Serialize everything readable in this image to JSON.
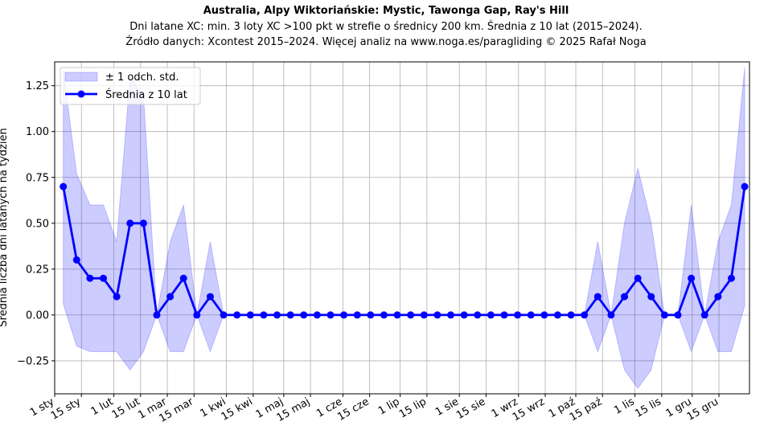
{
  "chart_data": {
    "type": "line",
    "title": "Australia, Alpy Wiktoriańskie: Mystic, Tawonga Gap, Ray's Hill",
    "subtitle": "Dni latane XC: min. 3 loty XC >100 pkt w strefie o średnicy 200 km. Średnia z 10 lat (2015–2024).",
    "source": "Źródło danych: Xcontest 2015–2024. Więcej analiz na www.noga.es/paragliding © 2025 Rafał Noga",
    "y_label": "Średnia liczba dni latanych na tydzień",
    "x": [
      4.5,
      11.5,
      18.5,
      25.5,
      32.5,
      39.5,
      46.5,
      53.5,
      60.5,
      67.5,
      74.5,
      81.5,
      88.5,
      95.5,
      102.5,
      109.5,
      116.5,
      123.5,
      130.5,
      137.5,
      144.5,
      151.5,
      158.5,
      165.5,
      172.5,
      179.5,
      186.5,
      193.5,
      200.5,
      207.5,
      214.5,
      221.5,
      228.5,
      235.5,
      242.5,
      249.5,
      256.5,
      263.5,
      270.5,
      277.5,
      284.5,
      291.5,
      298.5,
      305.5,
      312.5,
      319.5,
      326.5,
      333.5,
      340.5,
      347.5,
      354.5,
      361.5
    ],
    "series": [
      {
        "name": "Średnia z 10 lat",
        "color": "#0000ff",
        "values": [
          0.7,
          0.3,
          0.2,
          0.2,
          0.1,
          0.5,
          0.5,
          0,
          0.1,
          0.2,
          0,
          0.1,
          0,
          0,
          0,
          0,
          0,
          0,
          0,
          0,
          0,
          0,
          0,
          0,
          0,
          0,
          0,
          0,
          0,
          0,
          0,
          0,
          0,
          0,
          0,
          0,
          0,
          0,
          0,
          0,
          0.1,
          0,
          0.1,
          0.2,
          0.1,
          0,
          0,
          0.2,
          0,
          0.1,
          0.2,
          0.7
        ]
      }
    ],
    "band": {
      "name": "± 1 odch. std.",
      "color": "#0000ff",
      "values": [
        0.64,
        0.47,
        0.4,
        0.4,
        0.3,
        0.8,
        0.7,
        0,
        0.3,
        0.4,
        0,
        0.3,
        0,
        0,
        0,
        0,
        0,
        0,
        0,
        0,
        0,
        0,
        0,
        0,
        0,
        0,
        0,
        0,
        0,
        0,
        0,
        0,
        0,
        0,
        0,
        0,
        0,
        0,
        0,
        0,
        0.3,
        0,
        0.4,
        0.6,
        0.4,
        0,
        0,
        0.4,
        0,
        0.3,
        0.4,
        0.65
      ]
    },
    "xlim": [
      0,
      364
    ],
    "xticks": [
      {
        "value": 0,
        "label": "1 sty"
      },
      {
        "value": 14,
        "label": "15 sty"
      },
      {
        "value": 31,
        "label": "1 lut"
      },
      {
        "value": 45,
        "label": "15 lut"
      },
      {
        "value": 59,
        "label": "1 mar"
      },
      {
        "value": 73,
        "label": "15 mar"
      },
      {
        "value": 90,
        "label": "1 kwi"
      },
      {
        "value": 104,
        "label": "15 kwi"
      },
      {
        "value": 120,
        "label": "1 maj"
      },
      {
        "value": 134,
        "label": "15 maj"
      },
      {
        "value": 151,
        "label": "1 cze"
      },
      {
        "value": 165,
        "label": "15 cze"
      },
      {
        "value": 181,
        "label": "1 lip"
      },
      {
        "value": 195,
        "label": "15 lip"
      },
      {
        "value": 212,
        "label": "1 sie"
      },
      {
        "value": 226,
        "label": "15 sie"
      },
      {
        "value": 243,
        "label": "1 wrz"
      },
      {
        "value": 257,
        "label": "15 wrz"
      },
      {
        "value": 273,
        "label": "1 paź"
      },
      {
        "value": 287,
        "label": "15 paź"
      },
      {
        "value": 304,
        "label": "1 lis"
      },
      {
        "value": 318,
        "label": "15 lis"
      },
      {
        "value": 334,
        "label": "1 gru"
      },
      {
        "value": 348,
        "label": "15 gru"
      }
    ],
    "ylim": [
      -0.43,
      1.38
    ],
    "yticks": [
      {
        "value": -0.25,
        "label": "−0.25"
      },
      {
        "value": 0,
        "label": "0.00"
      },
      {
        "value": 0.25,
        "label": "0.25"
      },
      {
        "value": 0.5,
        "label": "0.50"
      },
      {
        "value": 0.75,
        "label": "0.75"
      },
      {
        "value": 1,
        "label": "1.00"
      },
      {
        "value": 1.25,
        "label": "1.25"
      }
    ],
    "grid": true,
    "legend": "upper left"
  }
}
